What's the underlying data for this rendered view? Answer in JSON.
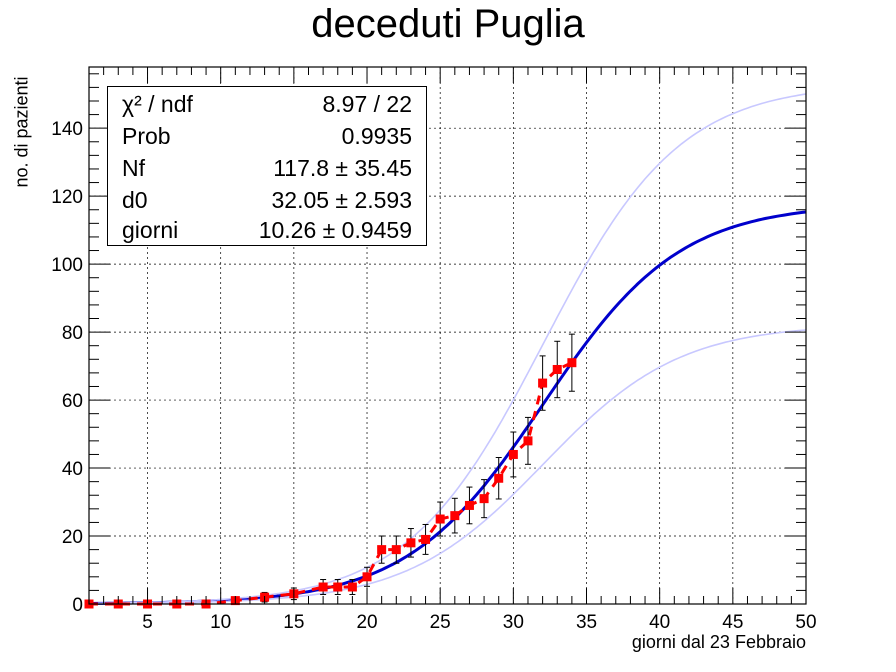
{
  "title": "deceduti Puglia",
  "xlabel": "giorni dal 23 Febbraio",
  "ylabel": "no. di pazienti",
  "stats": [
    {
      "name": "χ² / ndf",
      "value": "8.97 / 22"
    },
    {
      "name": "Prob",
      "value": "0.9935"
    },
    {
      "name": "Nf",
      "value": "117.8 ± 35.45"
    },
    {
      "name": "d0",
      "value": "32.05 ± 2.593"
    },
    {
      "name": "giorni",
      "value": "10.26 ± 0.9459"
    }
  ],
  "chart_data": {
    "type": "scatter",
    "title": "deceduti Puglia",
    "xlabel": "giorni dal 23 Febbraio",
    "ylabel": "no. di pazienti",
    "xlim": [
      1,
      50
    ],
    "ylim": [
      0,
      158
    ],
    "x_ticks": [
      5,
      10,
      15,
      20,
      25,
      30,
      35,
      40,
      45,
      50
    ],
    "y_ticks": [
      0,
      20,
      40,
      60,
      80,
      100,
      120,
      140
    ],
    "grid": true,
    "series": [
      {
        "type": "points-with-errors",
        "color": "#ff0000",
        "x": [
          1,
          3,
          5,
          7,
          9,
          11,
          13,
          15,
          17,
          18,
          19,
          20,
          21,
          22,
          23,
          24,
          25,
          26,
          27,
          28,
          29,
          30,
          31,
          32,
          33,
          34
        ],
        "y": [
          0,
          0,
          0,
          0,
          0,
          1,
          2,
          3,
          5,
          5,
          5,
          8,
          16,
          16,
          18,
          19,
          25,
          26,
          29,
          31,
          37,
          44,
          48,
          65,
          69,
          71
        ],
        "err": [
          1,
          1,
          1,
          1,
          1,
          1,
          1.4,
          1.7,
          2.2,
          2.2,
          2.2,
          2.8,
          4,
          4,
          4.2,
          4.4,
          5,
          5.1,
          5.4,
          5.6,
          6.1,
          6.6,
          6.9,
          8,
          8.3,
          8.4
        ]
      },
      {
        "type": "fit",
        "color": "#0000cc",
        "Nf": 117.8,
        "d0": 32.05,
        "giorni": 10.26
      },
      {
        "type": "fit-upper",
        "color": "#c8c8ff",
        "Nf": 153.25,
        "d0": 32.05,
        "giorni": 10.26
      },
      {
        "type": "fit-lower",
        "color": "#c8c8ff",
        "Nf": 82.35,
        "d0": 32.05,
        "giorni": 10.26
      }
    ]
  }
}
